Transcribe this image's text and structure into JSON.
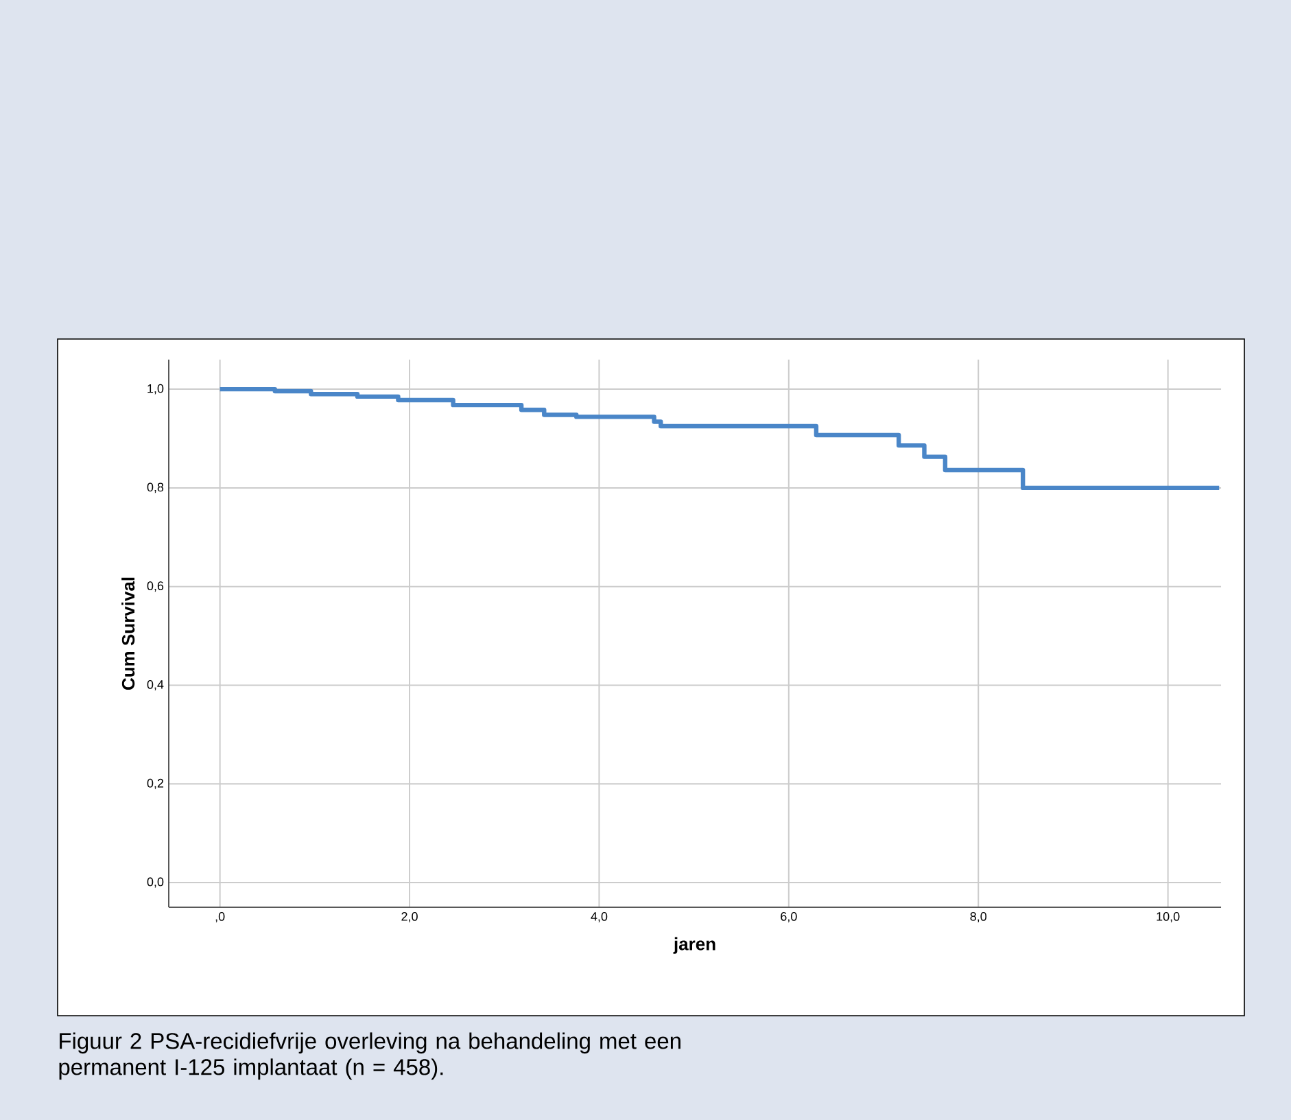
{
  "chart_data": {
    "type": "step",
    "xlabel": "jaren",
    "ylabel": "Cum Survival",
    "annotations": [
      "Figuur 2 PSA-recidiefvrije overleving na behandeling met een permanent I-125 implantaat (n = 458)."
    ],
    "x": [
      0,
      0.58,
      0.96,
      1.45,
      1.88,
      2.46,
      3.18,
      3.42,
      3.76,
      4.58,
      4.65,
      6.29,
      7.16,
      7.43,
      7.65,
      8.47,
      10.54
    ],
    "series": [
      {
        "color": "#4a86c8",
        "values": [
          1.0,
          0.996,
          0.99,
          0.985,
          0.978,
          0.968,
          0.958,
          0.948,
          0.944,
          0.934,
          0.925,
          0.907,
          0.886,
          0.863,
          0.836,
          0.8,
          0.8
        ]
      }
    ],
    "xlim": [
      -0.54,
      10.56
    ],
    "ylim": [
      -0.05,
      1.06
    ],
    "xticks": [
      {
        "value": 0,
        "label": ",0"
      },
      {
        "value": 2,
        "label": "2,0"
      },
      {
        "value": 4,
        "label": "4,0"
      },
      {
        "value": 6,
        "label": "6,0"
      },
      {
        "value": 8,
        "label": "8,0"
      },
      {
        "value": 10,
        "label": "10,0"
      }
    ],
    "yticks": [
      {
        "value": 0,
        "label": "0,0"
      },
      {
        "value": 0.2,
        "label": "0,2"
      },
      {
        "value": 0.4,
        "label": "0,4"
      },
      {
        "value": 0.6,
        "label": "0,6"
      },
      {
        "value": 0.8,
        "label": "0,8"
      },
      {
        "value": 1.0,
        "label": "1,0"
      }
    ],
    "grid": true,
    "line_style": "solid"
  }
}
